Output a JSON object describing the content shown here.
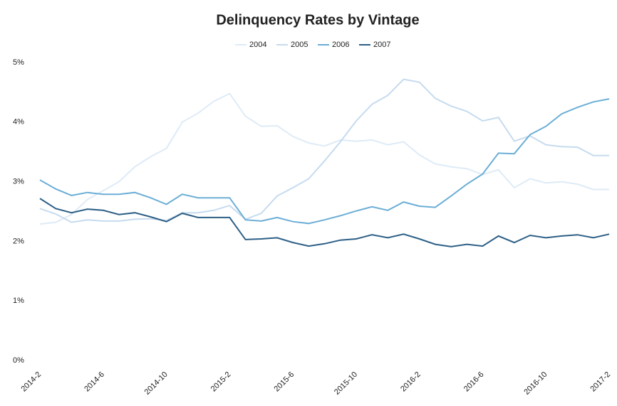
{
  "chart_data": {
    "type": "line",
    "title": "Delinquency Rates by Vintage",
    "categories": [
      "2014-2",
      null,
      null,
      null,
      "2014-6",
      null,
      null,
      null,
      "2014-10",
      null,
      null,
      null,
      "2015-2",
      null,
      null,
      null,
      "2015-6",
      null,
      null,
      null,
      "2015-10",
      null,
      null,
      null,
      "2016-2",
      null,
      null,
      null,
      "2016-6",
      null,
      null,
      null,
      "2016-10",
      null,
      null,
      null,
      "2017-2"
    ],
    "series": [
      {
        "name": "2004",
        "color": "#deebf7",
        "values": [
          2.29,
          2.32,
          2.45,
          2.7,
          2.85,
          3.0,
          3.25,
          3.42,
          3.56,
          4.0,
          4.15,
          4.35,
          4.48,
          4.1,
          3.93,
          3.94,
          3.76,
          3.65,
          3.6,
          3.7,
          3.68,
          3.7,
          3.62,
          3.67,
          3.45,
          3.3,
          3.25,
          3.22,
          3.12,
          3.2,
          2.9,
          3.05,
          2.98,
          3.0,
          2.96,
          2.87,
          2.87
        ]
      },
      {
        "name": "2005",
        "color": "#c6dbef",
        "values": [
          2.55,
          2.46,
          2.32,
          2.36,
          2.34,
          2.34,
          2.37,
          2.38,
          2.35,
          2.48,
          2.48,
          2.52,
          2.6,
          2.37,
          2.47,
          2.76,
          2.9,
          3.05,
          3.35,
          3.67,
          4.02,
          4.3,
          4.45,
          4.72,
          4.67,
          4.4,
          4.27,
          4.18,
          4.02,
          4.08,
          3.68,
          3.77,
          3.62,
          3.59,
          3.58,
          3.44,
          3.44
        ]
      },
      {
        "name": "2006",
        "color": "#6baed6",
        "values": [
          3.03,
          2.88,
          2.77,
          2.82,
          2.79,
          2.79,
          2.82,
          2.73,
          2.62,
          2.79,
          2.73,
          2.73,
          2.73,
          2.36,
          2.34,
          2.4,
          2.33,
          2.3,
          2.36,
          2.43,
          2.51,
          2.58,
          2.52,
          2.66,
          2.59,
          2.57,
          2.76,
          2.96,
          3.13,
          3.48,
          3.47,
          3.79,
          3.93,
          4.14,
          4.25,
          4.34,
          4.39
        ]
      },
      {
        "name": "2007",
        "color": "#2d5f86",
        "values": [
          2.72,
          2.55,
          2.48,
          2.54,
          2.52,
          2.45,
          2.48,
          2.41,
          2.33,
          2.47,
          2.4,
          2.4,
          2.4,
          2.03,
          2.04,
          2.06,
          1.98,
          1.92,
          1.96,
          2.02,
          2.04,
          2.11,
          2.06,
          2.12,
          2.04,
          1.95,
          1.91,
          1.95,
          1.92,
          2.09,
          1.98,
          2.1,
          2.06,
          2.09,
          2.11,
          2.06,
          2.12
        ]
      }
    ],
    "ylim": [
      0,
      5
    ],
    "yticks": [
      {
        "value": 0,
        "label": "0%"
      },
      {
        "value": 1,
        "label": "1%"
      },
      {
        "value": 2,
        "label": "2%"
      },
      {
        "value": 3,
        "label": "3%"
      },
      {
        "value": 4,
        "label": "4%"
      },
      {
        "value": 5,
        "label": "5%"
      }
    ],
    "legend": "top"
  }
}
